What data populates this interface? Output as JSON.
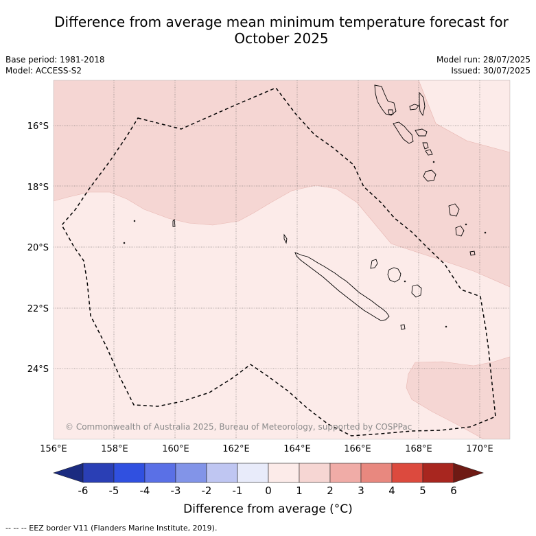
{
  "title": {
    "line1": "Difference from average mean minimum temperature forecast for",
    "line2": "October 2025"
  },
  "meta": {
    "base_period": "Base period: 1981-2018",
    "model": "Model: ACCESS-S2",
    "model_run": "Model run: 28/07/2025",
    "issued": "Issued: 30/07/2025"
  },
  "map": {
    "lat_labels": [
      "16°S",
      "18°S",
      "20°S",
      "22°S",
      "24°S"
    ],
    "lon_labels": [
      "156°E",
      "158°E",
      "160°E",
      "162°E",
      "164°E",
      "166°E",
      "168°E",
      "170°E"
    ],
    "copyright": "© Commonwealth of Australia 2025, Bureau of Meteorology, supported by COSPPac"
  },
  "colorbar": {
    "ticks": [
      "-6",
      "-5",
      "-4",
      "-3",
      "-2",
      "-1",
      "0",
      "1",
      "2",
      "3",
      "4",
      "5",
      "6"
    ],
    "colors": [
      "#1b2b80",
      "#2a3fb5",
      "#3050e0",
      "#5a70e6",
      "#8294e8",
      "#bfc6f2",
      "#e8ebfa",
      "#fcebe9",
      "#f6d6d3",
      "#f0aca7",
      "#e8887f",
      "#dc4a3e",
      "#a8261f",
      "#6e1a14"
    ],
    "label": "Difference from average (°C)"
  },
  "footnote": "--  --  -- EEZ border V11 (Flanders Marine Institute, 2019)."
}
